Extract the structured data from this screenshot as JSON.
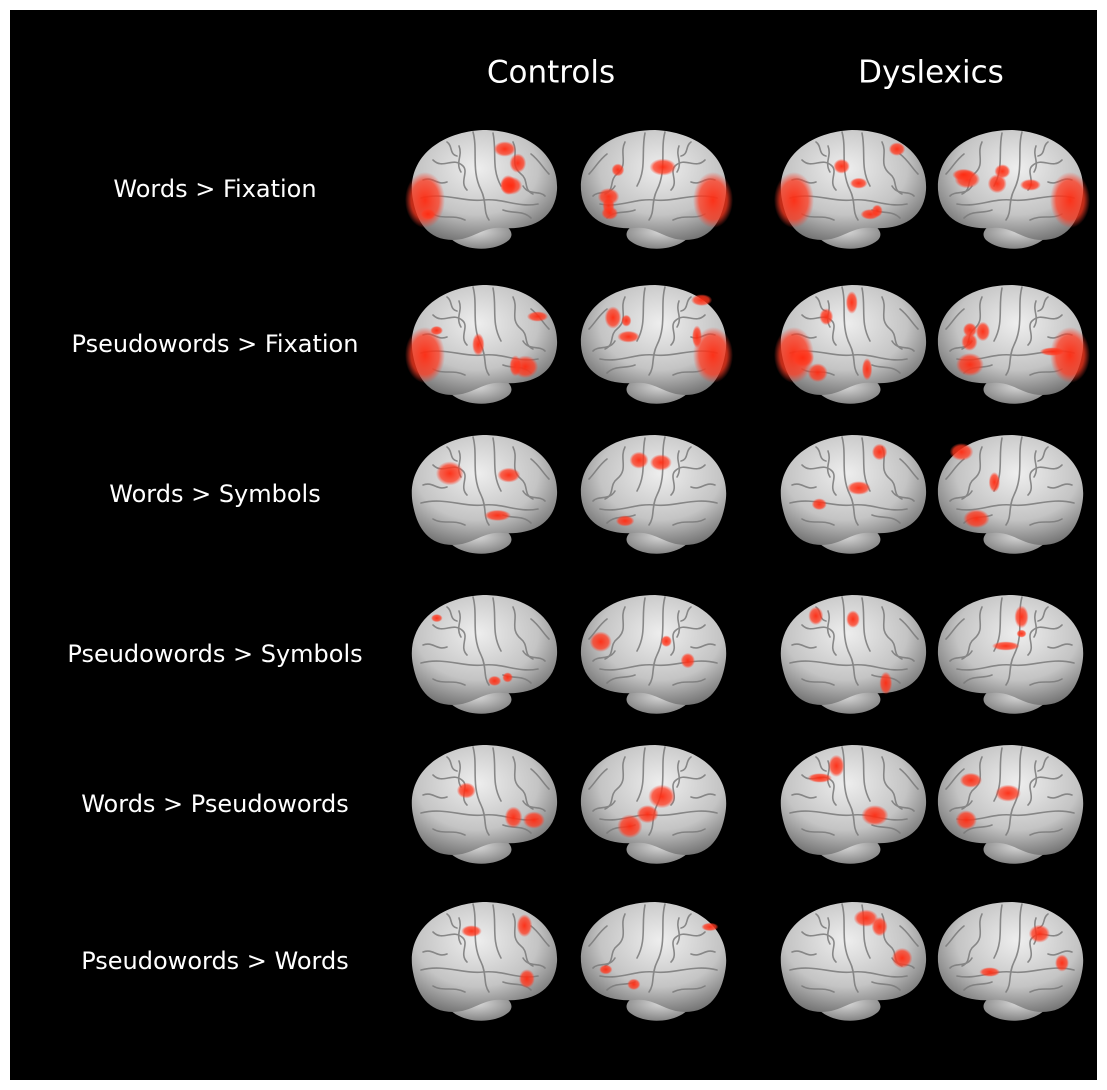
{
  "header": {
    "columns": [
      "Controls",
      "Dyslexics"
    ]
  },
  "rows": [
    {
      "label": "Words > Fixation"
    },
    {
      "label": "Pseudowords > Fixation"
    },
    {
      "label": "Words > Symbols"
    },
    {
      "label": "Pseudowords > Symbols"
    },
    {
      "label": "Words > Pseudowords"
    },
    {
      "label": "Pseudowords > Words"
    }
  ]
}
